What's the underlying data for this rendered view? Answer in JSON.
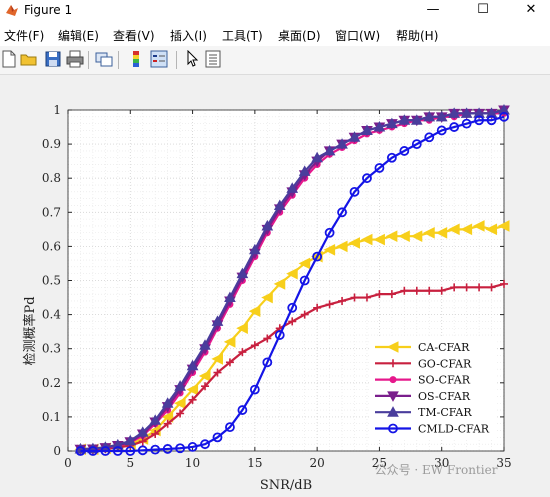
{
  "window": {
    "title": "Figure 1",
    "buttons": [
      "—",
      "☐",
      "✕"
    ]
  },
  "menu": [
    {
      "label": "文件(F)"
    },
    {
      "label": "编辑(E)"
    },
    {
      "label": "查看(V)"
    },
    {
      "label": "插入(I)"
    },
    {
      "label": "工具(T)"
    },
    {
      "label": "桌面(D)"
    },
    {
      "label": "窗口(W)"
    },
    {
      "label": "帮助(H)"
    }
  ],
  "toolbar": {
    "icons": [
      "new-figure-icon",
      "open-file-icon",
      "save-icon",
      "print-icon",
      "link-plot-icon",
      "colorbar-icon",
      "legend-icon",
      "pointer-icon",
      "property-editor-icon"
    ]
  },
  "colors": {
    "CA": "#f7cf1b",
    "GO": "#c8203f",
    "SO": "#e6188c",
    "OS": "#7a1e8c",
    "TM": "#4a3d9c",
    "CMLD": "#1414e6"
  },
  "chart_data": {
    "type": "line",
    "xlabel": "SNR/dB",
    "ylabel": "检测概率Pd",
    "xlim": [
      0,
      35
    ],
    "ylim": [
      0,
      1
    ],
    "xticks": [
      0,
      5,
      10,
      15,
      20,
      25,
      30,
      35
    ],
    "yticks": [
      0,
      0.1,
      0.2,
      0.3,
      0.4,
      0.5,
      0.6,
      0.7,
      0.8,
      0.9,
      1
    ],
    "grid": true,
    "legend_position": "bottom-right",
    "x": [
      1,
      2,
      3,
      4,
      5,
      6,
      7,
      8,
      9,
      10,
      11,
      12,
      13,
      14,
      15,
      16,
      17,
      18,
      19,
      20,
      21,
      22,
      23,
      24,
      25,
      26,
      27,
      28,
      29,
      30,
      31,
      32,
      33,
      34,
      35
    ],
    "series": [
      {
        "name": "CA-CFAR",
        "color": "#f7cf1b",
        "marker": "triangle-left",
        "values": [
          0.005,
          0.005,
          0.008,
          0.012,
          0.02,
          0.035,
          0.06,
          0.1,
          0.14,
          0.18,
          0.22,
          0.27,
          0.32,
          0.36,
          0.41,
          0.45,
          0.49,
          0.52,
          0.55,
          0.57,
          0.59,
          0.6,
          0.61,
          0.62,
          0.62,
          0.63,
          0.63,
          0.63,
          0.64,
          0.64,
          0.65,
          0.65,
          0.66,
          0.65,
          0.66
        ]
      },
      {
        "name": "GO-CFAR",
        "color": "#c8203f",
        "marker": "plus",
        "values": [
          0.004,
          0.004,
          0.006,
          0.01,
          0.016,
          0.028,
          0.05,
          0.08,
          0.11,
          0.15,
          0.19,
          0.23,
          0.26,
          0.29,
          0.31,
          0.33,
          0.36,
          0.38,
          0.4,
          0.42,
          0.43,
          0.44,
          0.45,
          0.45,
          0.46,
          0.46,
          0.47,
          0.47,
          0.47,
          0.47,
          0.48,
          0.48,
          0.48,
          0.48,
          0.49
        ]
      },
      {
        "name": "SO-CFAR",
        "color": "#e6188c",
        "marker": "circle-filled",
        "values": [
          0.005,
          0.006,
          0.009,
          0.015,
          0.025,
          0.045,
          0.08,
          0.12,
          0.17,
          0.23,
          0.29,
          0.36,
          0.43,
          0.5,
          0.57,
          0.64,
          0.7,
          0.75,
          0.8,
          0.84,
          0.87,
          0.89,
          0.91,
          0.93,
          0.94,
          0.95,
          0.96,
          0.97,
          0.97,
          0.98,
          0.98,
          0.99,
          0.99,
          0.99,
          0.99
        ]
      },
      {
        "name": "OS-CFAR",
        "color": "#7a1e8c",
        "marker": "triangle-down",
        "values": [
          0.005,
          0.006,
          0.01,
          0.016,
          0.027,
          0.05,
          0.085,
          0.13,
          0.18,
          0.24,
          0.3,
          0.37,
          0.44,
          0.51,
          0.58,
          0.65,
          0.71,
          0.76,
          0.81,
          0.85,
          0.88,
          0.9,
          0.92,
          0.94,
          0.95,
          0.96,
          0.97,
          0.97,
          0.98,
          0.98,
          0.99,
          0.99,
          0.99,
          0.99,
          1.0
        ]
      },
      {
        "name": "TM-CFAR",
        "color": "#4a3d9c",
        "marker": "triangle-up",
        "values": [
          0.006,
          0.007,
          0.011,
          0.018,
          0.03,
          0.055,
          0.09,
          0.14,
          0.19,
          0.25,
          0.31,
          0.38,
          0.45,
          0.52,
          0.59,
          0.66,
          0.72,
          0.77,
          0.82,
          0.86,
          0.88,
          0.9,
          0.92,
          0.94,
          0.95,
          0.96,
          0.97,
          0.97,
          0.98,
          0.98,
          0.99,
          0.99,
          0.99,
          0.99,
          1.0
        ]
      },
      {
        "name": "CMLD-CFAR",
        "color": "#1414e6",
        "marker": "circle-open",
        "values": [
          0.0,
          0.0,
          0.0,
          0.0,
          0.0,
          0.002,
          0.004,
          0.006,
          0.008,
          0.012,
          0.02,
          0.04,
          0.07,
          0.12,
          0.18,
          0.26,
          0.34,
          0.42,
          0.5,
          0.57,
          0.64,
          0.7,
          0.76,
          0.8,
          0.83,
          0.86,
          0.88,
          0.9,
          0.92,
          0.94,
          0.95,
          0.96,
          0.97,
          0.97,
          0.98
        ]
      }
    ]
  },
  "watermark": "公众号 · EW Frontier"
}
